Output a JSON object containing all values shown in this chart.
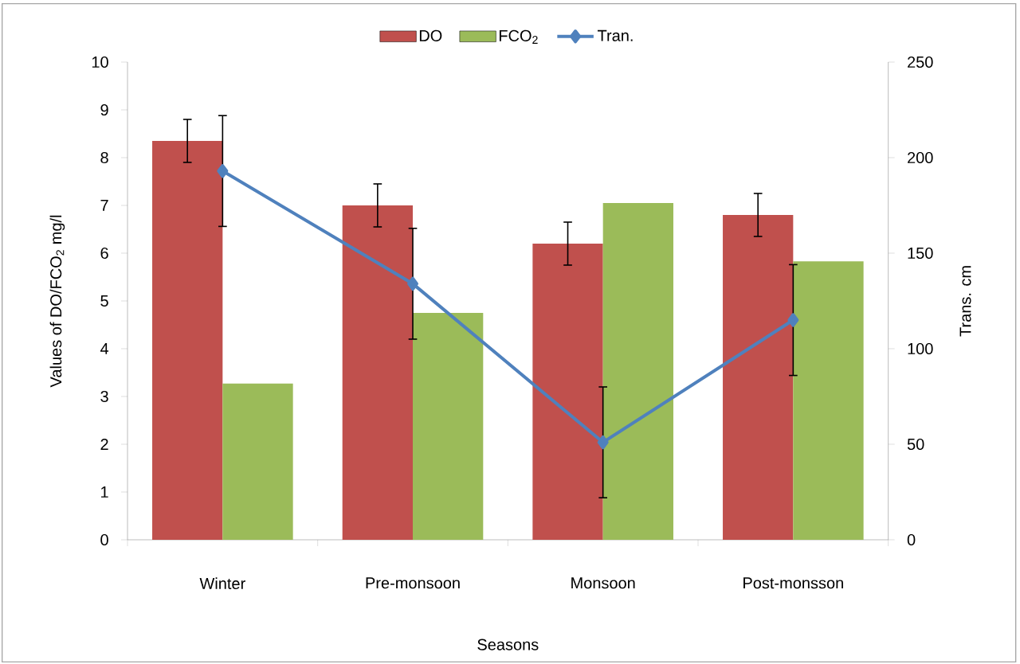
{
  "chart_data": {
    "type": "bar",
    "xlabel": "Seasons",
    "ylabel": "Values of DO/FCO$_{2}$ mg/l",
    "y2label": "Trans. cm",
    "categories": [
      "Winter",
      "Pre-monsoon",
      "Monsoon",
      "Post-monsson"
    ],
    "series": [
      {
        "name": "DO",
        "color": "#c0504d",
        "values": [
          8.35,
          7.0,
          6.2,
          6.8
        ],
        "errors": [
          0.45,
          0.45,
          0.45,
          0.45
        ]
      },
      {
        "name": "FCO$_{2}$",
        "color": "#9bbb59",
        "values": [
          3.27,
          4.75,
          7.05,
          5.83
        ]
      },
      {
        "name": "Tran.",
        "type": "line",
        "axis": "y2",
        "color": "#4f81bd",
        "marker": "diamond",
        "values": [
          193,
          134,
          51,
          115
        ],
        "errors": [
          29,
          29,
          29,
          29
        ]
      }
    ],
    "ylim": [
      0,
      10
    ],
    "yticks": [
      0,
      1,
      2,
      3,
      4,
      5,
      6,
      7,
      8,
      9,
      10
    ],
    "y2lim": [
      0,
      250
    ],
    "y2ticks": [
      0,
      50,
      100,
      150,
      200,
      250
    ],
    "legend": "top"
  }
}
